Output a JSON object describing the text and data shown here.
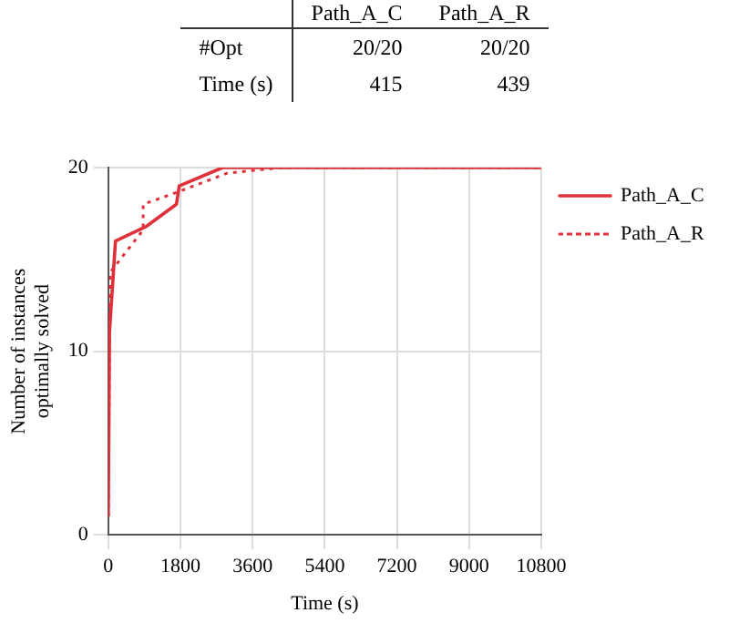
{
  "chart_data": {
    "type": "line",
    "xlabel": "Time (s)",
    "ylabel": "Number of instances optimally solved",
    "xlim": [
      0,
      10800
    ],
    "xticks": [
      0,
      1800,
      3600,
      5400,
      7200,
      9000,
      10800
    ],
    "ylim": [
      0,
      20
    ],
    "yticks": [
      0,
      10,
      20
    ],
    "grid": true,
    "legend": "top right",
    "marker": "none",
    "annotations": [
      "#Opt",
      "20/20",
      "20/20",
      "Time (s)",
      "415",
      "439"
    ],
    "series": [
      {
        "name": "Path_A_C",
        "color": "#e0303a",
        "line_style": "solid",
        "x": [
          0,
          30,
          180,
          950,
          1700,
          1770,
          2850,
          10800
        ],
        "values": [
          1,
          11,
          16,
          16.8,
          18,
          19,
          20,
          20
        ]
      },
      {
        "name": "Path_A_R",
        "color": "#e0303a",
        "line_style": "dotted",
        "x": [
          0,
          50,
          870,
          870,
          1770,
          2970,
          4320,
          10800
        ],
        "values": [
          1,
          14.3,
          16.6,
          18,
          18.7,
          19.7,
          20,
          20
        ]
      }
    ]
  }
}
